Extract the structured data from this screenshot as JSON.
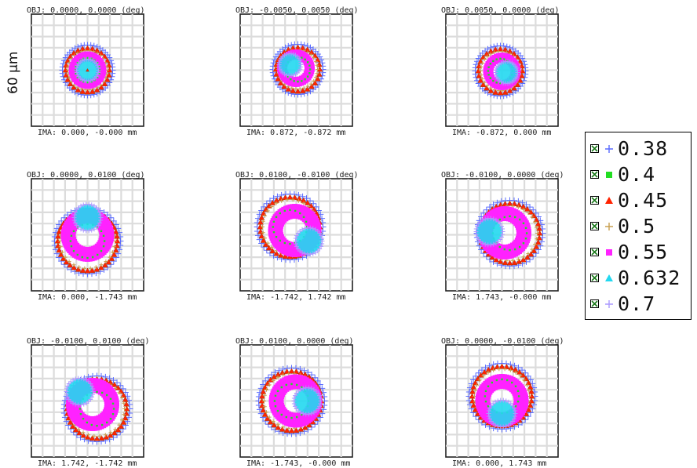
{
  "scale_label": "60 µm",
  "chart_data": {
    "type": "scatter",
    "subtype": "spot diagram",
    "grid": true,
    "legend": {
      "placement": "right",
      "entries": [
        {
          "label": "0.38",
          "color": "#5a6cff",
          "marker": "plus"
        },
        {
          "label": "0.4",
          "color": "#22dd22",
          "marker": "square"
        },
        {
          "label": "0.45",
          "color": "#ff2200",
          "marker": "triangle"
        },
        {
          "label": "0.5",
          "color": "#c8a050",
          "marker": "plus"
        },
        {
          "label": "0.55",
          "color": "#ff22ff",
          "marker": "square"
        },
        {
          "label": "0.632",
          "color": "#22d8f0",
          "marker": "triangle"
        },
        {
          "label": "0.7",
          "color": "#aa99ff",
          "marker": "plus"
        }
      ]
    },
    "panels": [
      {
        "obj": "OBJ: 0.0000, 0.0000 (deg)",
        "ima": "IMA: 0.000, -0.000 mm",
        "shift": [
          0,
          0
        ],
        "inner": [
          0,
          0
        ]
      },
      {
        "obj": "OBJ: -0.0050, 0.0050 (deg)",
        "ima": "IMA: 0.872, -0.872 mm",
        "shift": [
          2,
          -1
        ],
        "inner": [
          -10,
          -6
        ]
      },
      {
        "obj": "OBJ: 0.0050, 0.0000 (deg)",
        "ima": "IMA: -0.872, 0.000 mm",
        "shift": [
          -2,
          1
        ],
        "inner": [
          8,
          2
        ]
      },
      {
        "obj": "OBJ: 0.0000, 0.0100 (deg)",
        "ima": "IMA: 0.000, -1.743 mm",
        "shift": [
          0,
          8
        ],
        "inner": [
          0,
          -30
        ]
      },
      {
        "obj": "OBJ: 0.0100, -0.0100 (deg)",
        "ima": "IMA: -1.742, 1.742 mm",
        "shift": [
          -8,
          -10
        ],
        "inner": [
          24,
          18
        ]
      },
      {
        "obj": "OBJ: -0.0100, 0.0000 (deg)",
        "ima": "IMA: 1.743, -0.000 mm",
        "shift": [
          10,
          -2
        ],
        "inner": [
          -26,
          -2
        ]
      },
      {
        "obj": "OBJ: -0.0100, 0.0100 (deg)",
        "ima": "IMA: 1.742, -1.742 mm",
        "shift": [
          12,
          10
        ],
        "inner": [
          -22,
          -22
        ]
      },
      {
        "obj": "OBJ: 0.0100, 0.0000 (deg)",
        "ima": "IMA: -1.743, -0.000 mm",
        "shift": [
          -6,
          0
        ],
        "inner": [
          20,
          0
        ]
      },
      {
        "obj": "OBJ: 0.0000, -0.0100 (deg)",
        "ima": "IMA: 0.000, 1.743 mm",
        "shift": [
          0,
          -6
        ],
        "inner": [
          0,
          22
        ]
      }
    ]
  }
}
